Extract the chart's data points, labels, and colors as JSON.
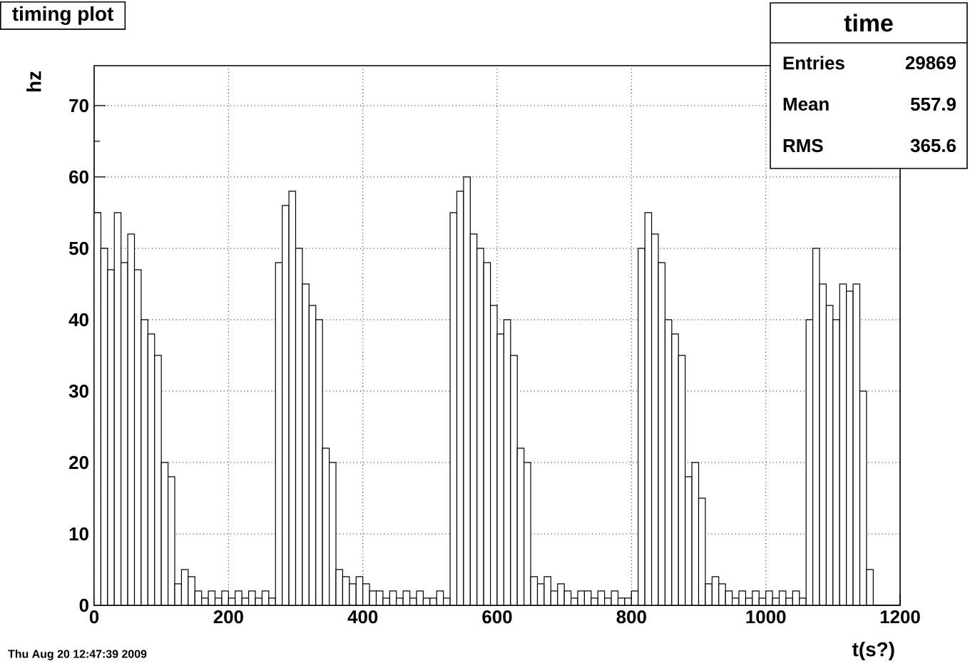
{
  "chart_data": {
    "type": "histogram",
    "title": "timing plot",
    "xlabel": "t(s?)",
    "ylabel": "hz",
    "bins": [
      0,
      10,
      20,
      30,
      40,
      50,
      60,
      70,
      80,
      90,
      100,
      110,
      120,
      130,
      140,
      150,
      160,
      170,
      180,
      190,
      200,
      210,
      220,
      230,
      240,
      250,
      260,
      270,
      280,
      290,
      300,
      310,
      320,
      330,
      340,
      350,
      360,
      370,
      380,
      390,
      400,
      410,
      420,
      430,
      440,
      450,
      460,
      470,
      480,
      490,
      500,
      510,
      520,
      530,
      540,
      550,
      560,
      570,
      580,
      590,
      600,
      610,
      620,
      630,
      640,
      650,
      660,
      670,
      680,
      690,
      700,
      710,
      720,
      730,
      740,
      750,
      760,
      770,
      780,
      790,
      800,
      810,
      820,
      830,
      840,
      850,
      860,
      870,
      880,
      890,
      900,
      910,
      920,
      930,
      940,
      950,
      960,
      970,
      980,
      990,
      1000,
      1010,
      1020,
      1030,
      1040,
      1050,
      1060,
      1070,
      1080,
      1090,
      1100,
      1110,
      1120,
      1130,
      1140,
      1150,
      1160,
      1170,
      1180,
      1190,
      1200
    ],
    "values": [
      55,
      50,
      47,
      55,
      48,
      52,
      47,
      40,
      38,
      35,
      20,
      18,
      3,
      5,
      4,
      2,
      1,
      2,
      1,
      2,
      1,
      2,
      1,
      2,
      1,
      2,
      1,
      48,
      56,
      58,
      50,
      45,
      42,
      40,
      22,
      20,
      5,
      4,
      3,
      4,
      3,
      2,
      2,
      1,
      2,
      1,
      2,
      1,
      2,
      1,
      1,
      2,
      1,
      55,
      58,
      60,
      52,
      50,
      48,
      42,
      38,
      40,
      35,
      22,
      20,
      4,
      3,
      4,
      2,
      3,
      2,
      1,
      2,
      2,
      1,
      2,
      1,
      2,
      1,
      1,
      2,
      50,
      55,
      52,
      48,
      40,
      38,
      35,
      18,
      20,
      15,
      3,
      4,
      3,
      2,
      1,
      2,
      1,
      2,
      1,
      2,
      1,
      2,
      1,
      2,
      1,
      40,
      50,
      45,
      42,
      40,
      45,
      44,
      45,
      30,
      5,
      0,
      0,
      0,
      0
    ],
    "color": "#000000",
    "xlim": [
      0,
      1200
    ],
    "ylim": [
      0,
      75.6
    ],
    "xticks": [
      0,
      200,
      400,
      600,
      800,
      1000,
      1200
    ],
    "yticks": [
      0,
      10,
      20,
      30,
      40,
      50,
      60,
      70
    ],
    "grid": true,
    "annotations": [
      "time",
      "Entries",
      "29869",
      "Mean",
      "557.9",
      "RMS",
      "365.6",
      "Thu Aug 20 12:47:39 2009"
    ]
  }
}
